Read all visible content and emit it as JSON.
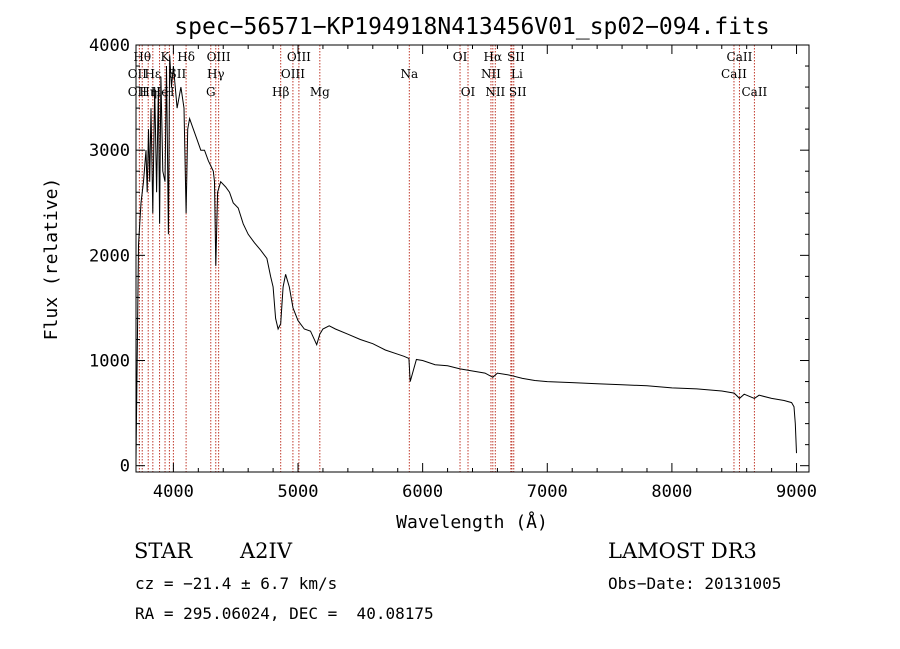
{
  "colors": {
    "spectrum": "#000000",
    "marker": "#c0392b",
    "axis": "#000000"
  },
  "info": {
    "class": "STAR",
    "subclass": "A2IV",
    "cz": "cz = −21.4 ± 6.7 km/s",
    "coords": "RA = 295.06024, DEC =  40.08175",
    "survey": "LAMOST DR3",
    "obsdate": "Obs−Date: 20131005"
  },
  "chart_data": {
    "type": "line",
    "title": "spec−56571−KP194918N413456V01_sp02−094.fits",
    "xlabel": "Wavelength (Å)",
    "ylabel": "Flux (relative)",
    "xlim": [
      3700,
      9100
    ],
    "ylim": [
      -60,
      4000
    ],
    "xticks": [
      4000,
      5000,
      6000,
      7000,
      8000,
      9000
    ],
    "xtick_labels": [
      "4000",
      "5000",
      "6000",
      "7000",
      "8000",
      "9000"
    ],
    "yticks": [
      0,
      1000,
      2000,
      3000,
      4000
    ],
    "ytick_labels": [
      "0",
      "1000",
      "2000",
      "3000",
      "4000"
    ],
    "series": [
      {
        "name": "flux",
        "x": [
          3700,
          3720,
          3740,
          3760,
          3780,
          3790,
          3800,
          3810,
          3820,
          3835,
          3850,
          3865,
          3880,
          3889,
          3900,
          3915,
          3933,
          3945,
          3960,
          3970,
          3985,
          4000,
          4030,
          4060,
          4085,
          4102,
          4115,
          4130,
          4160,
          4190,
          4220,
          4250,
          4280,
          4300,
          4320,
          4330,
          4340,
          4355,
          4380,
          4420,
          4450,
          4480,
          4520,
          4560,
          4600,
          4650,
          4700,
          4750,
          4780,
          4800,
          4820,
          4840,
          4861,
          4880,
          4900,
          4930,
          4960,
          5000,
          5050,
          5100,
          5150,
          5175,
          5200,
          5250,
          5300,
          5400,
          5500,
          5600,
          5700,
          5800,
          5850,
          5890,
          5900,
          5950,
          6000,
          6100,
          6200,
          6300,
          6400,
          6500,
          6563,
          6600,
          6700,
          6800,
          6900,
          7000,
          7200,
          7400,
          7600,
          7800,
          8000,
          8200,
          8400,
          8500,
          8542,
          8580,
          8662,
          8700,
          8800,
          8900,
          8960,
          8980,
          8990,
          9000
        ],
        "y": [
          50,
          2100,
          2500,
          2700,
          3000,
          2600,
          3200,
          2700,
          3400,
          2400,
          3600,
          2600,
          3600,
          2300,
          3700,
          2800,
          2700,
          3800,
          2200,
          3900,
          3600,
          3800,
          3400,
          3600,
          3400,
          2400,
          3200,
          3300,
          3200,
          3100,
          3000,
          3000,
          2900,
          2850,
          2800,
          2700,
          1900,
          2600,
          2700,
          2650,
          2600,
          2500,
          2450,
          2300,
          2200,
          2120,
          2050,
          1970,
          1800,
          1700,
          1400,
          1300,
          1350,
          1700,
          1820,
          1700,
          1500,
          1380,
          1300,
          1280,
          1150,
          1250,
          1300,
          1330,
          1300,
          1250,
          1200,
          1160,
          1100,
          1060,
          1040,
          1020,
          800,
          1010,
          1000,
          960,
          950,
          920,
          900,
          880,
          840,
          880,
          860,
          830,
          810,
          800,
          790,
          780,
          770,
          760,
          740,
          730,
          710,
          690,
          640,
          680,
          640,
          670,
          640,
          620,
          600,
          560,
          400,
          120
        ]
      }
    ],
    "lines": [
      {
        "wl": 3750,
        "label": "Hθ",
        "row": 0,
        "dx": 0
      },
      {
        "wl": 3727,
        "label": "OII",
        "row": 1,
        "dx": -2
      },
      {
        "wl": 3727,
        "label": "OII",
        "row": 2,
        "dx": -2
      },
      {
        "wl": 3798,
        "label": "Hη",
        "row": 2,
        "dx": 0
      },
      {
        "wl": 3835,
        "label": "Hε",
        "row": 1,
        "dx": 0
      },
      {
        "wl": 3889,
        "label": "He",
        "row": 2,
        "dx": 0
      },
      {
        "wl": 3933,
        "label": "K",
        "row": 0,
        "dx": 0
      },
      {
        "wl": 3968,
        "label": "H",
        "row": 2,
        "dx": 0
      },
      {
        "wl": 4000,
        "label": "SII",
        "row": 1,
        "dx": 4
      },
      {
        "wl": 4102,
        "label": "Hδ",
        "row": 0,
        "dx": 0
      },
      {
        "wl": 4300,
        "label": "G",
        "row": 2,
        "dx": 0
      },
      {
        "wl": 4340,
        "label": "Hγ",
        "row": 1,
        "dx": 0
      },
      {
        "wl": 4363,
        "label": "OIII",
        "row": 0,
        "dx": 0
      },
      {
        "wl": 4861,
        "label": "Hβ",
        "row": 2,
        "dx": 0
      },
      {
        "wl": 4959,
        "label": "OIII",
        "row": 1,
        "dx": 0
      },
      {
        "wl": 5007,
        "label": "OIII",
        "row": 0,
        "dx": 0
      },
      {
        "wl": 5175,
        "label": "Mg",
        "row": 2,
        "dx": 0
      },
      {
        "wl": 5893,
        "label": "Na",
        "row": 1,
        "dx": 0
      },
      {
        "wl": 6300,
        "label": "OI",
        "row": 0,
        "dx": 0
      },
      {
        "wl": 6364,
        "label": "OI",
        "row": 2,
        "dx": 0
      },
      {
        "wl": 6548,
        "label": "NII",
        "row": 1,
        "dx": 0
      },
      {
        "wl": 6563,
        "label": "Hα",
        "row": 0,
        "dx": 0
      },
      {
        "wl": 6583,
        "label": "NII",
        "row": 2,
        "dx": 0
      },
      {
        "wl": 6708,
        "label": "Li",
        "row": 1,
        "dx": 6
      },
      {
        "wl": 6716,
        "label": "SII",
        "row": 0,
        "dx": 4
      },
      {
        "wl": 6731,
        "label": "SII",
        "row": 2,
        "dx": 4
      },
      {
        "wl": 8498,
        "label": "CaII",
        "row": 1,
        "dx": 0
      },
      {
        "wl": 8542,
        "label": "CaII",
        "row": 0,
        "dx": 0
      },
      {
        "wl": 8662,
        "label": "CaII",
        "row": 2,
        "dx": 0
      }
    ]
  }
}
